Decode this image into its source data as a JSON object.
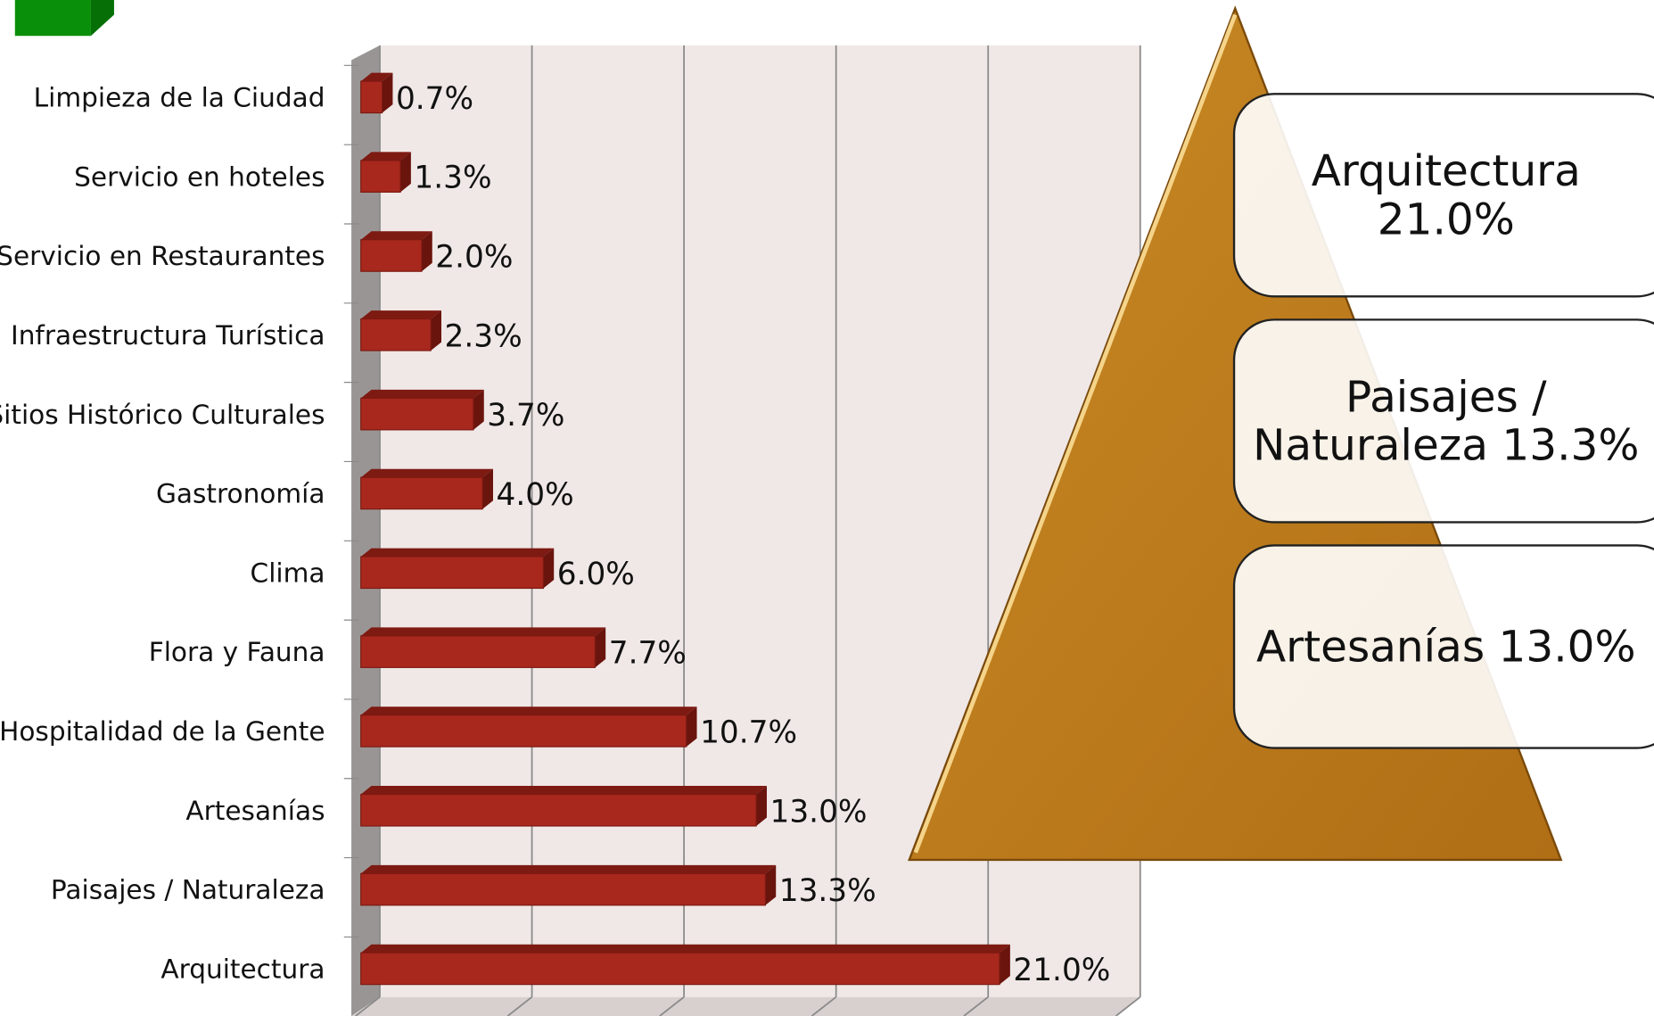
{
  "chart_data": {
    "type": "bar",
    "orientation": "horizontal",
    "categories": [
      "Limpieza de la Ciudad",
      "Servicio en hoteles",
      "Servicio en Restaurantes",
      "Infraestructura Turística",
      "Sitios Histórico Culturales",
      "Gastronomía",
      "Clima",
      "Flora y Fauna",
      "Hospitalidad de la Gente",
      "Artesanías",
      "Paisajes / Naturaleza",
      "Arquitectura"
    ],
    "values": [
      0.7,
      1.3,
      2.0,
      2.3,
      3.7,
      4.0,
      6.0,
      7.7,
      10.7,
      13.0,
      13.3,
      21.0
    ],
    "value_labels": [
      "0.7%",
      "1.3%",
      "2.0%",
      "2.3%",
      "3.7%",
      "4.0%",
      "6.0%",
      "7.7%",
      "10.7%",
      "13.0%",
      "13.3%",
      "21.0%"
    ],
    "color": "#a8281e",
    "xlim": [
      0,
      25
    ],
    "xticks": [
      0,
      5,
      10,
      15,
      20,
      25
    ],
    "grid": true
  },
  "pyramid": {
    "items": [
      [
        "Arquitectura",
        "21.0%"
      ],
      [
        "Paisajes /",
        "Naturaleza 13.3%"
      ],
      [
        "Artesanías 13.0%"
      ]
    ]
  }
}
